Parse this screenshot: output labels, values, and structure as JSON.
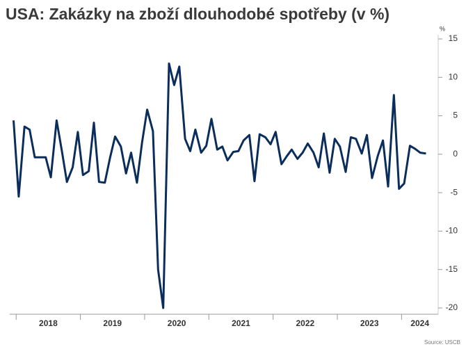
{
  "chart_data": {
    "type": "line",
    "title": "USA: Zakázky na zboží dlouhodobé spotřeby (v %)",
    "y_unit": "%",
    "source": "Source: USCB",
    "x": [
      2017.96,
      2018.04,
      2018.13,
      2018.21,
      2018.29,
      2018.38,
      2018.46,
      2018.54,
      2018.63,
      2018.71,
      2018.79,
      2018.88,
      2018.96,
      2019.04,
      2019.13,
      2019.21,
      2019.29,
      2019.38,
      2019.46,
      2019.54,
      2019.63,
      2019.71,
      2019.79,
      2019.88,
      2019.96,
      2020.04,
      2020.13,
      2020.21,
      2020.29,
      2020.38,
      2020.46,
      2020.54,
      2020.63,
      2020.71,
      2020.79,
      2020.88,
      2020.96,
      2021.04,
      2021.13,
      2021.21,
      2021.29,
      2021.38,
      2021.46,
      2021.54,
      2021.63,
      2021.71,
      2021.79,
      2021.88,
      2021.96,
      2022.04,
      2022.13,
      2022.21,
      2022.29,
      2022.38,
      2022.46,
      2022.54,
      2022.63,
      2022.71,
      2022.79,
      2022.88,
      2022.96,
      2023.04,
      2023.13,
      2023.21,
      2023.29,
      2023.38,
      2023.46,
      2023.54,
      2023.63,
      2023.71,
      2023.79,
      2023.88,
      2023.96,
      2024.04,
      2024.13,
      2024.21,
      2024.29,
      2024.38
    ],
    "series": [
      {
        "name": "Zakázky",
        "color": "#0b2d5b",
        "values": [
          4.4,
          -5.5,
          3.6,
          3.2,
          -0.4,
          -0.4,
          -0.4,
          -3.0,
          4.4,
          0.5,
          -3.6,
          -1.7,
          2.9,
          -2.7,
          -2.2,
          4.1,
          -3.6,
          -3.7,
          -0.5,
          2.3,
          1.0,
          -2.5,
          0.2,
          -3.7,
          1.5,
          5.8,
          3.0,
          -15,
          -20,
          11.8,
          9.0,
          11.4,
          2.0,
          0.4,
          3.2,
          0.2,
          1.1,
          4.6,
          0.6,
          1.0,
          -0.8,
          0.3,
          0.4,
          1.8,
          2.5,
          -3.5,
          2.6,
          2.2,
          1.3,
          2.9,
          -1.3,
          -0.3,
          0.6,
          -0.6,
          0.2,
          1.4,
          0.2,
          -1.7,
          2.7,
          -2.4,
          2.0,
          1.0,
          -2.3,
          2.2,
          2.0,
          0.1,
          2.5,
          -3.1,
          -0.2,
          1.8,
          -4.2,
          7.7,
          -4.5,
          -3.8,
          1.1,
          0.7,
          0.2,
          0.1
        ]
      }
    ],
    "xlim": [
      2017.9,
      2024.57
    ],
    "xticks": [
      2018,
      2019,
      2020,
      2021,
      2022,
      2023,
      2024
    ],
    "year_labels": [
      "2018",
      "2019",
      "2020",
      "2021",
      "2022",
      "2023",
      "2024"
    ],
    "ylim": [
      -20,
      15
    ],
    "yticks": [
      -20,
      -15,
      -10,
      -5,
      0,
      5,
      10,
      15
    ]
  }
}
